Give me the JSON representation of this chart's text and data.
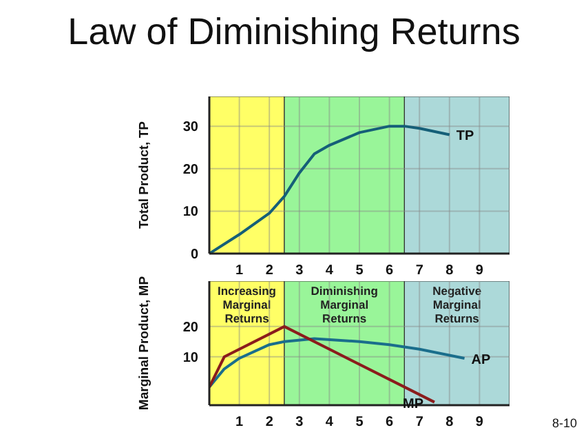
{
  "chart_data": [
    {
      "type": "line",
      "title": "Law of Diminishing Returns",
      "ylabel": "Total Product, TP",
      "xlim": [
        0,
        10
      ],
      "xticks": [
        1,
        2,
        3,
        4,
        5,
        6,
        7,
        8,
        9
      ],
      "ylim": [
        0,
        37
      ],
      "yticks": [
        0,
        10,
        20,
        30
      ],
      "grid": true,
      "legend": false,
      "marker": "none",
      "bands": [
        {
          "axis": "x",
          "from": 0,
          "to": 2.5,
          "color": "#ffff66"
        },
        {
          "axis": "x",
          "from": 2.5,
          "to": 6.5,
          "color": "#99f599"
        },
        {
          "axis": "x",
          "from": 6.5,
          "to": 10,
          "color": "#acd9d9"
        }
      ],
      "series": [
        {
          "name": "TP",
          "color": "#155f78",
          "x": [
            0,
            1,
            2,
            2.5,
            3,
            3.5,
            4,
            5,
            6,
            6.5,
            7,
            8
          ],
          "values": [
            0,
            4.5,
            9.5,
            13.5,
            19,
            23.5,
            25.5,
            28.5,
            30,
            30,
            29.5,
            28
          ]
        }
      ]
    },
    {
      "type": "line",
      "ylabel": "Marginal Product, MP",
      "xlim": [
        0,
        10
      ],
      "xticks": [
        1,
        2,
        3,
        4,
        5,
        6,
        7,
        8,
        9
      ],
      "ylim": [
        -6,
        35
      ],
      "yticks": [
        10,
        20
      ],
      "grid": true,
      "legend": false,
      "marker": "none",
      "bands": [
        {
          "axis": "x",
          "from": 0,
          "to": 2.5,
          "color": "#ffff66",
          "label": "Increasing Marginal Returns"
        },
        {
          "axis": "x",
          "from": 2.5,
          "to": 6.5,
          "color": "#99f599",
          "label": "Diminishing Marginal Returns"
        },
        {
          "axis": "x",
          "from": 6.5,
          "to": 10,
          "color": "#acd9d9",
          "label": "Negative Marginal Returns"
        }
      ],
      "annotations": [
        "8-10"
      ],
      "series": [
        {
          "name": "AP",
          "color": "#1a6e8c",
          "x": [
            0,
            0.5,
            1,
            2,
            2.5,
            3.5,
            5,
            6,
            7,
            8.5
          ],
          "values": [
            0,
            6,
            9.5,
            14,
            15,
            16,
            15,
            14,
            12.5,
            9.5
          ]
        },
        {
          "name": "MP",
          "color": "#8b1c1c",
          "x": [
            0,
            0.5,
            2.5,
            6.5,
            7.5
          ],
          "values": [
            0,
            10,
            20,
            0,
            -5
          ]
        }
      ]
    }
  ]
}
